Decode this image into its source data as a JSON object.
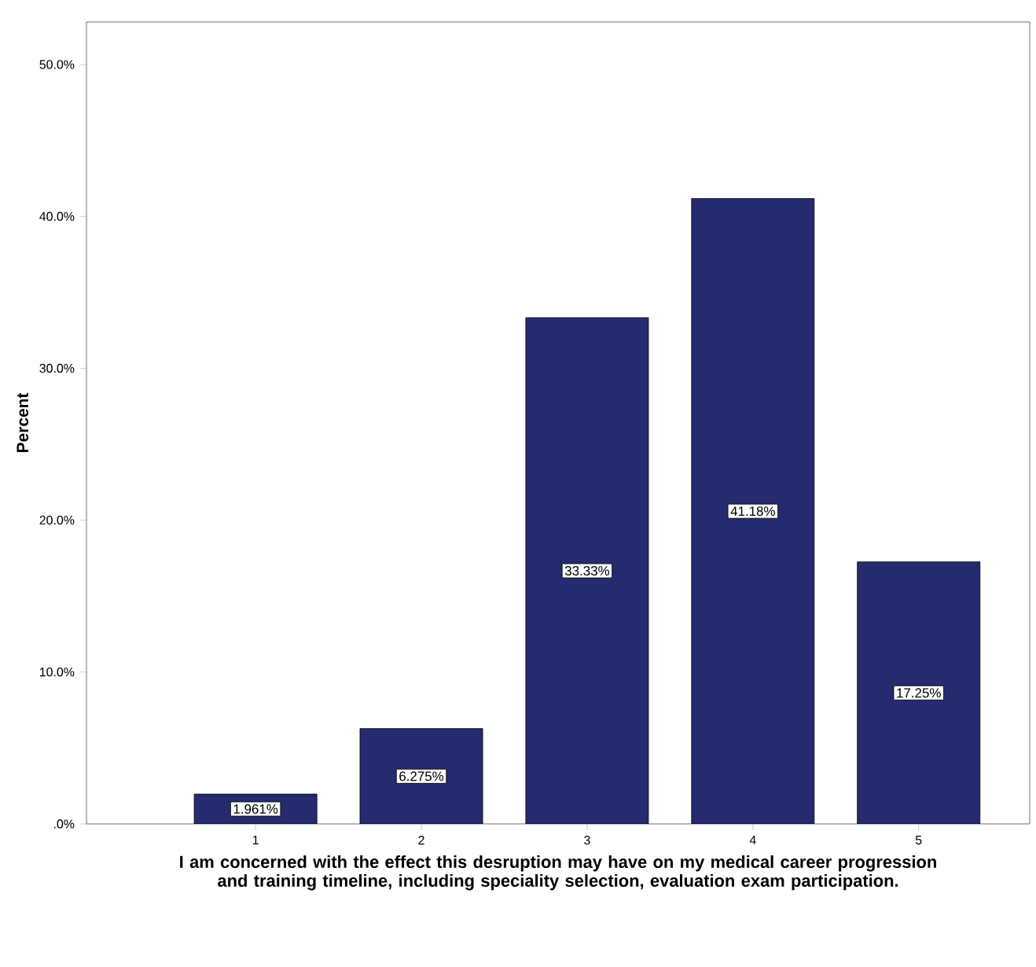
{
  "chart_data": {
    "type": "bar",
    "xlabel": "I am concerned with the effect this desruption may have on my medical career progression and training timeline, including speciality selection, evaluation exam participation.",
    "ylabel": "Percent",
    "categories": [
      "1",
      "2",
      "3",
      "4",
      "5"
    ],
    "values": [
      1.961,
      6.275,
      33.33,
      41.18,
      17.25
    ],
    "value_labels": [
      "1.961%",
      "6.275%",
      "33.33%",
      "41.18%",
      "17.25%"
    ],
    "color": "#262a6e",
    "ylim": [
      0,
      52.8
    ],
    "yticks": [
      {
        "value": 0,
        "label": ".0%"
      },
      {
        "value": 10,
        "label": "10.0%"
      },
      {
        "value": 20,
        "label": "20.0%"
      },
      {
        "value": 30,
        "label": "30.0%"
      },
      {
        "value": 40,
        "label": "40.0%"
      },
      {
        "value": 50,
        "label": "50.0%"
      }
    ],
    "grid": false
  }
}
